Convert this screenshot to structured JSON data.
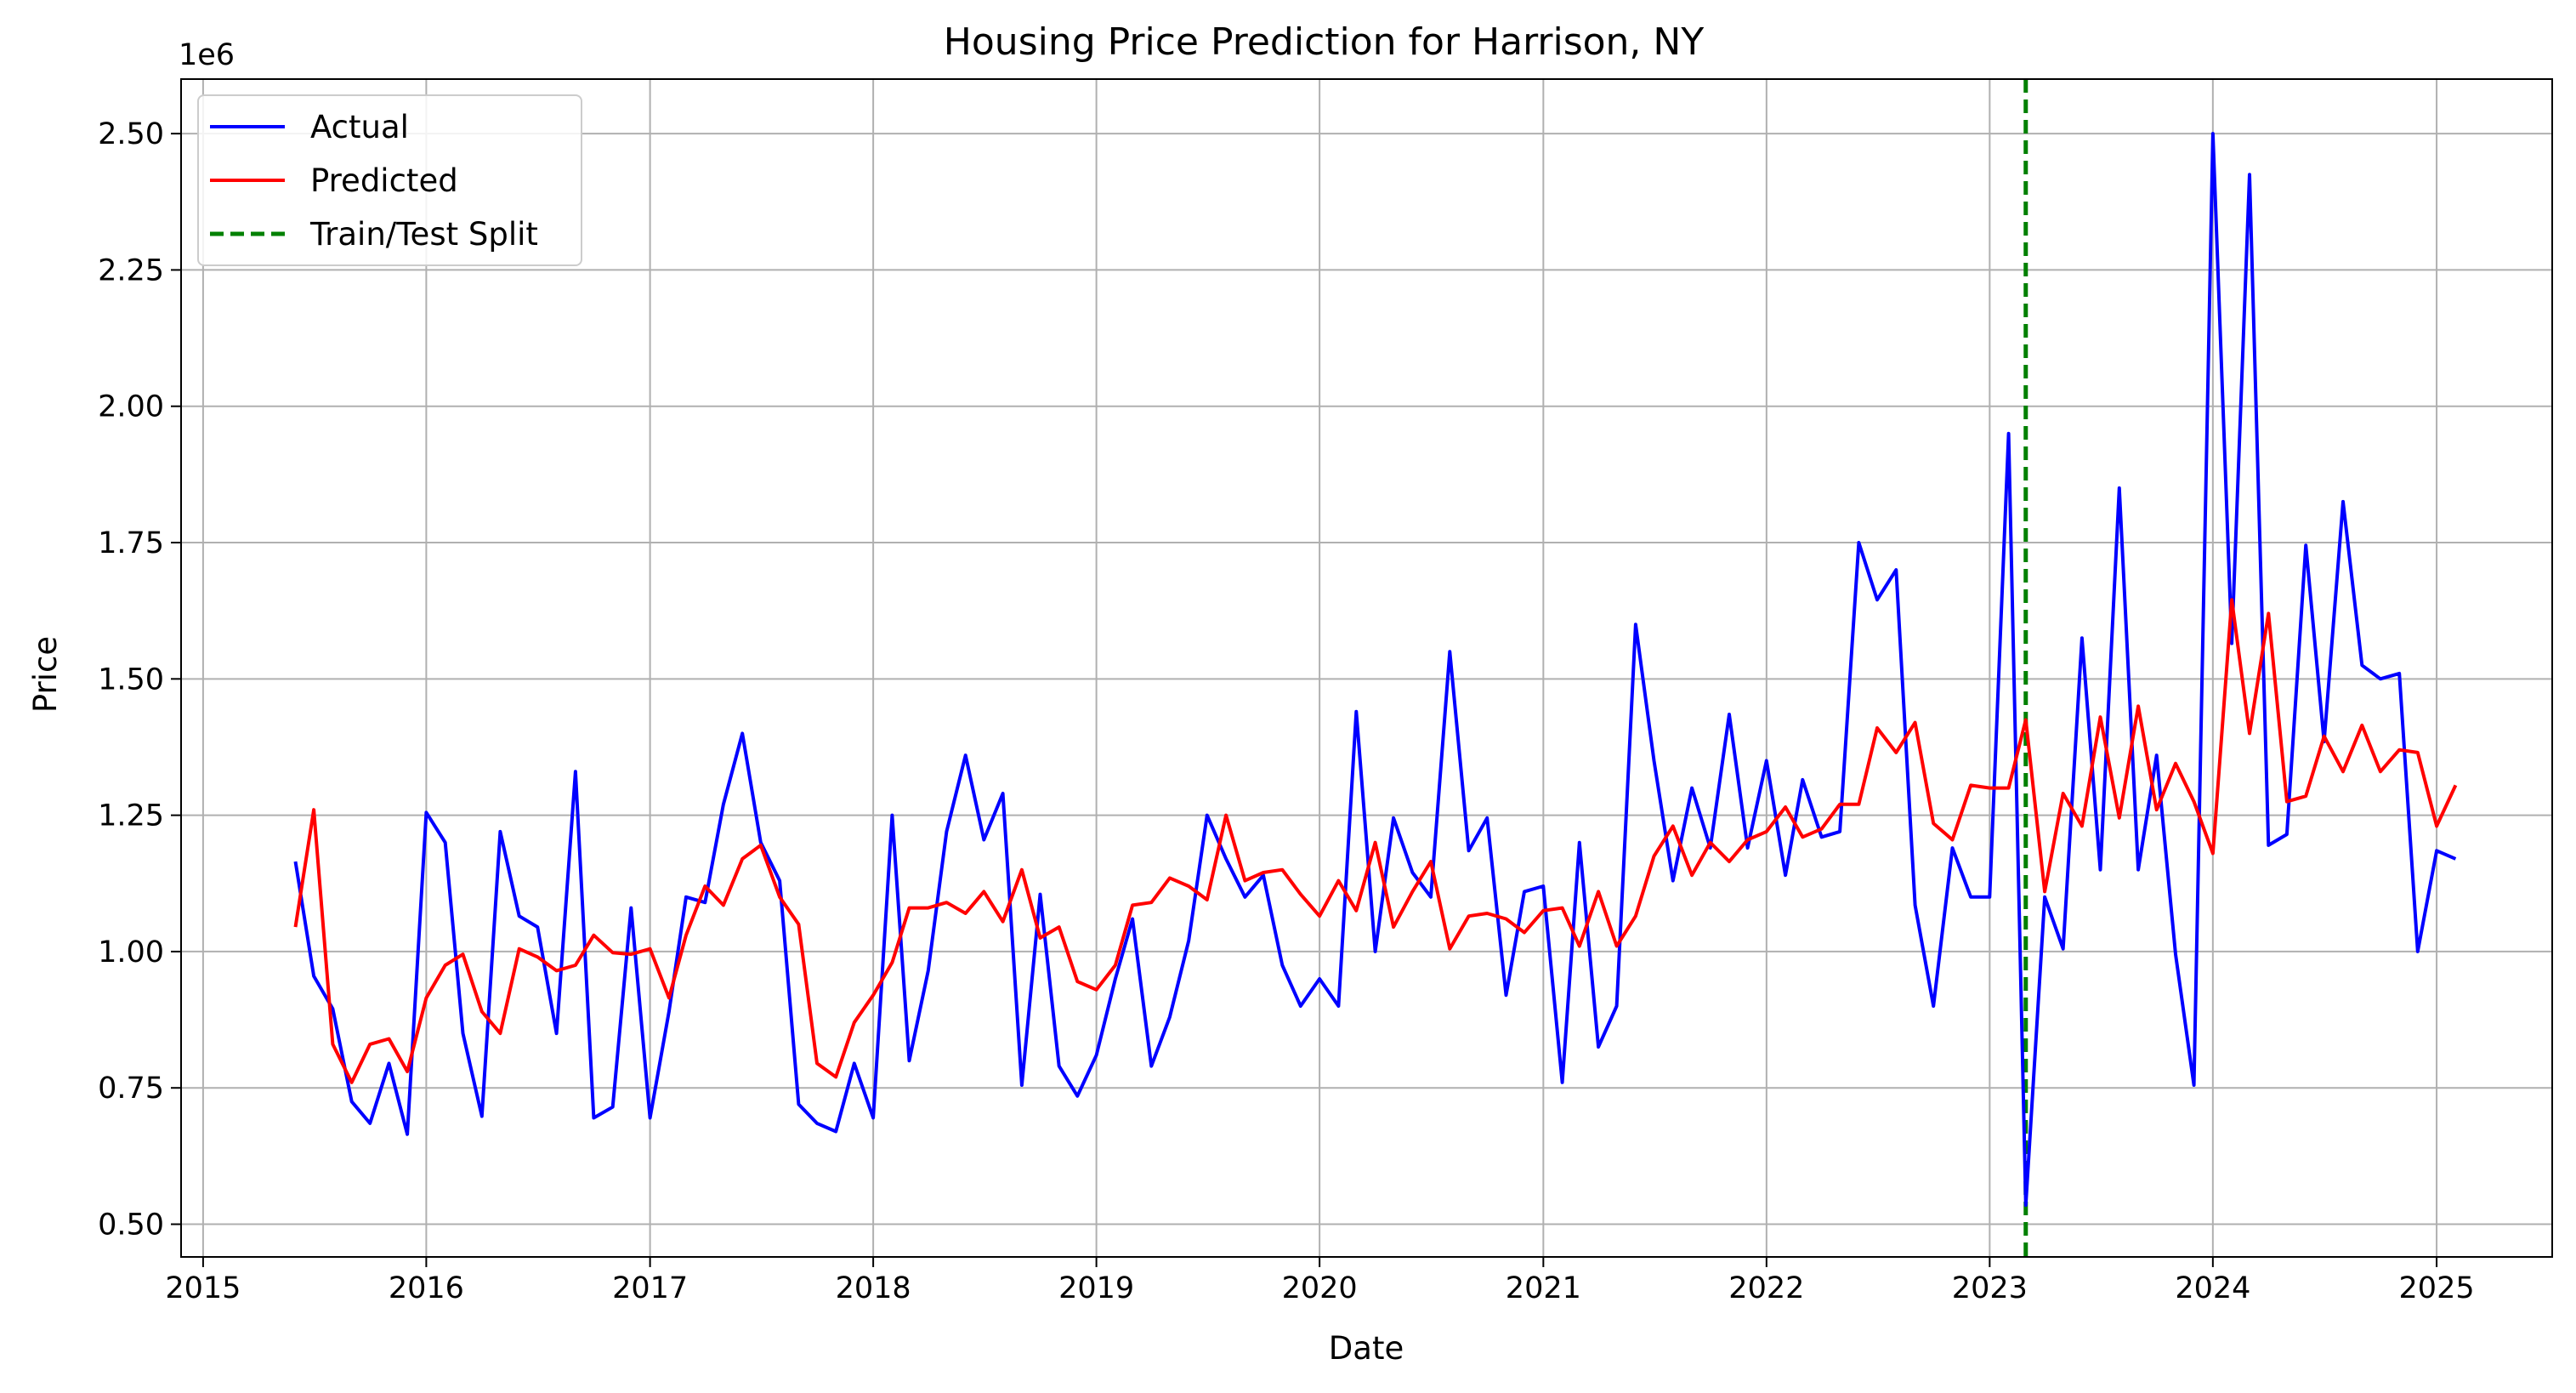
{
  "chart_data": {
    "type": "line",
    "title": "Housing Price Prediction for Harrison, NY",
    "xlabel": "Date",
    "ylabel": "Price",
    "y_offset_label": "1e6",
    "xlim": [
      "2014-11-26",
      "2025-07-09"
    ],
    "ylim": [
      0.44,
      2.6
    ],
    "x_ticks": [
      "2015",
      "2016",
      "2017",
      "2018",
      "2019",
      "2020",
      "2021",
      "2022",
      "2023",
      "2024",
      "2025"
    ],
    "y_ticks": [
      "0.50",
      "0.75",
      "1.00",
      "1.25",
      "1.50",
      "1.75",
      "2.00",
      "2.25",
      "2.50"
    ],
    "grid": true,
    "legend_position": "top-left",
    "split_date": "2023-03-01",
    "split_label": "Train/Test Split",
    "x": [
      "2015-06",
      "2015-07",
      "2015-08",
      "2015-09",
      "2015-10",
      "2015-11",
      "2015-12",
      "2016-01",
      "2016-02",
      "2016-03",
      "2016-04",
      "2016-05",
      "2016-06",
      "2016-07",
      "2016-08",
      "2016-09",
      "2016-10",
      "2016-11",
      "2016-12",
      "2017-01",
      "2017-02",
      "2017-03",
      "2017-04",
      "2017-05",
      "2017-06",
      "2017-07",
      "2017-08",
      "2017-09",
      "2017-10",
      "2017-11",
      "2017-12",
      "2018-01",
      "2018-02",
      "2018-03",
      "2018-04",
      "2018-05",
      "2018-06",
      "2018-07",
      "2018-08",
      "2018-09",
      "2018-10",
      "2018-11",
      "2018-12",
      "2019-01",
      "2019-02",
      "2019-03",
      "2019-04",
      "2019-05",
      "2019-06",
      "2019-07",
      "2019-08",
      "2019-09",
      "2019-10",
      "2019-11",
      "2019-12",
      "2020-01",
      "2020-02",
      "2020-03",
      "2020-04",
      "2020-05",
      "2020-06",
      "2020-07",
      "2020-08",
      "2020-09",
      "2020-10",
      "2020-11",
      "2020-12",
      "2021-01",
      "2021-02",
      "2021-03",
      "2021-04",
      "2021-05",
      "2021-06",
      "2021-07",
      "2021-08",
      "2021-09",
      "2021-10",
      "2021-11",
      "2021-12",
      "2022-01",
      "2022-02",
      "2022-03",
      "2022-04",
      "2022-05",
      "2022-06",
      "2022-07",
      "2022-08",
      "2022-09",
      "2022-10",
      "2022-11",
      "2022-12",
      "2023-01",
      "2023-02",
      "2023-03",
      "2023-04",
      "2023-05",
      "2023-06",
      "2023-07",
      "2023-08",
      "2023-09",
      "2023-10",
      "2023-11",
      "2023-12",
      "2024-01",
      "2024-02",
      "2024-03",
      "2024-04",
      "2024-05",
      "2024-06",
      "2024-07",
      "2024-08",
      "2024-09",
      "2024-10",
      "2024-11",
      "2024-12",
      "2025-01",
      "2025-02"
    ],
    "series": [
      {
        "name": "Actual",
        "color": "#0000ff",
        "values": [
          1.165,
          0.955,
          0.895,
          0.725,
          0.685,
          0.795,
          0.665,
          1.255,
          1.2,
          0.85,
          0.698,
          1.22,
          1.065,
          1.045,
          0.85,
          1.33,
          0.695,
          0.715,
          1.08,
          0.695,
          0.89,
          1.1,
          1.09,
          1.27,
          1.4,
          1.2,
          1.13,
          0.72,
          0.685,
          0.67,
          0.795,
          0.695,
          1.25,
          0.8,
          0.965,
          1.22,
          1.36,
          1.205,
          1.29,
          0.755,
          1.105,
          0.79,
          0.735,
          0.81,
          0.95,
          1.06,
          0.79,
          0.88,
          1.02,
          1.25,
          1.17,
          1.1,
          1.14,
          0.975,
          0.9,
          0.95,
          0.9,
          1.44,
          1.0,
          1.245,
          1.145,
          1.1,
          1.55,
          1.185,
          1.245,
          0.92,
          1.11,
          1.12,
          0.76,
          1.2,
          0.825,
          0.9,
          1.6,
          1.35,
          1.13,
          1.3,
          1.19,
          1.435,
          1.19,
          1.35,
          1.14,
          1.315,
          1.21,
          1.22,
          1.75,
          1.645,
          1.7,
          1.085,
          0.9,
          1.19,
          1.1,
          1.1,
          1.95,
          0.535,
          1.1,
          1.005,
          1.575,
          1.15,
          1.85,
          1.15,
          1.36,
          0.995,
          0.755,
          2.5,
          1.565,
          2.425,
          1.195,
          1.215,
          1.745,
          1.385,
          1.825,
          1.525,
          1.5,
          1.51,
          1.0,
          1.185,
          1.17
        ]
      },
      {
        "name": "Predicted",
        "color": "#ff0000",
        "values": [
          1.045,
          1.26,
          0.83,
          0.76,
          0.83,
          0.84,
          0.78,
          0.915,
          0.975,
          0.995,
          0.89,
          0.85,
          1.005,
          0.99,
          0.965,
          0.975,
          1.03,
          0.998,
          0.995,
          1.005,
          0.915,
          1.03,
          1.12,
          1.085,
          1.17,
          1.195,
          1.1,
          1.05,
          0.795,
          0.77,
          0.87,
          0.92,
          0.98,
          1.08,
          1.08,
          1.09,
          1.07,
          1.11,
          1.055,
          1.15,
          1.025,
          1.045,
          0.945,
          0.93,
          0.975,
          1.085,
          1.09,
          1.135,
          1.12,
          1.095,
          1.25,
          1.13,
          1.145,
          1.15,
          1.105,
          1.065,
          1.13,
          1.075,
          1.2,
          1.045,
          1.11,
          1.165,
          1.005,
          1.065,
          1.07,
          1.06,
          1.035,
          1.075,
          1.08,
          1.01,
          1.11,
          1.01,
          1.065,
          1.175,
          1.23,
          1.14,
          1.2,
          1.165,
          1.205,
          1.22,
          1.265,
          1.21,
          1.225,
          1.27,
          1.27,
          1.41,
          1.365,
          1.42,
          1.235,
          1.205,
          1.305,
          1.3,
          1.3,
          1.425,
          1.11,
          1.29,
          1.23,
          1.43,
          1.245,
          1.45,
          1.26,
          1.345,
          1.275,
          1.18,
          1.645,
          1.4,
          1.62,
          1.275,
          1.285,
          1.395,
          1.33,
          1.415,
          1.33,
          1.37,
          1.365,
          1.23,
          1.305
        ]
      }
    ]
  }
}
